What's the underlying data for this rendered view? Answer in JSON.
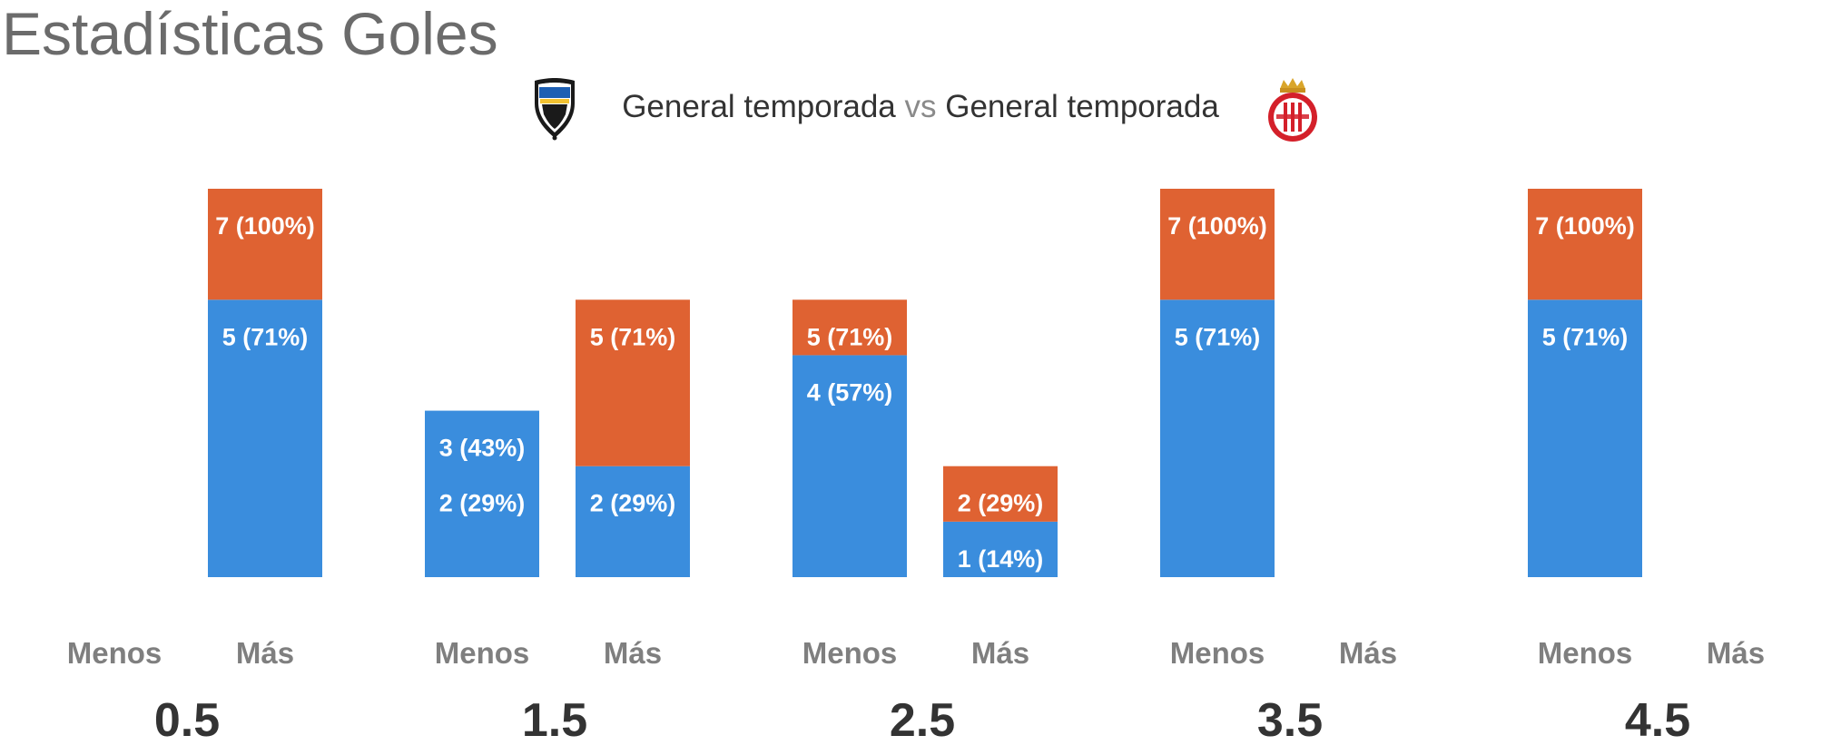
{
  "page": {
    "title": "Estadísticas Goles"
  },
  "header": {
    "home_label": "General temporada",
    "vs_label": "vs",
    "away_label": "General temporada",
    "home_crest_icon": "cd-castellon-crest-icon",
    "away_crest_icon": "girona-fc-crest-icon"
  },
  "colors": {
    "home": "#3a8ddd",
    "away": "#df6232"
  },
  "chart_data": {
    "type": "bar",
    "stacked": true,
    "y_max": 7,
    "categories": [
      "Menos",
      "Más"
    ],
    "groups": [
      {
        "threshold": "0.5",
        "bars": [
          {
            "category": "Menos",
            "segments": []
          },
          {
            "category": "Más",
            "segments": [
              {
                "team": "home",
                "value": 5,
                "label": "5 (71%)"
              },
              {
                "team": "away",
                "value": 7,
                "label": "7 (100%)"
              }
            ]
          }
        ]
      },
      {
        "threshold": "1.5",
        "bars": [
          {
            "category": "Menos",
            "segments": [
              {
                "team": "home",
                "value": 3,
                "label": "3 (43%)"
              },
              {
                "team": "away",
                "value": 2,
                "label": "2 (29%)"
              }
            ]
          },
          {
            "category": "Más",
            "segments": [
              {
                "team": "home",
                "value": 2,
                "label": "2 (29%)"
              },
              {
                "team": "away",
                "value": 5,
                "label": "5 (71%)"
              }
            ]
          }
        ]
      },
      {
        "threshold": "2.5",
        "bars": [
          {
            "category": "Menos",
            "segments": [
              {
                "team": "home",
                "value": 4,
                "label": "4 (57%)"
              },
              {
                "team": "away",
                "value": 5,
                "label": "5 (71%)"
              }
            ]
          },
          {
            "category": "Más",
            "segments": [
              {
                "team": "home",
                "value": 1,
                "label": "1 (14%)"
              },
              {
                "team": "away",
                "value": 2,
                "label": "2 (29%)"
              }
            ]
          }
        ]
      },
      {
        "threshold": "3.5",
        "bars": [
          {
            "category": "Menos",
            "segments": [
              {
                "team": "home",
                "value": 5,
                "label": "5 (71%)"
              },
              {
                "team": "away",
                "value": 7,
                "label": "7 (100%)"
              }
            ]
          },
          {
            "category": "Más",
            "segments": []
          }
        ]
      },
      {
        "threshold": "4.5",
        "bars": [
          {
            "category": "Menos",
            "segments": [
              {
                "team": "home",
                "value": 5,
                "label": "5 (71%)"
              },
              {
                "team": "away",
                "value": 7,
                "label": "7 (100%)"
              }
            ]
          },
          {
            "category": "Más",
            "segments": []
          }
        ]
      }
    ]
  }
}
